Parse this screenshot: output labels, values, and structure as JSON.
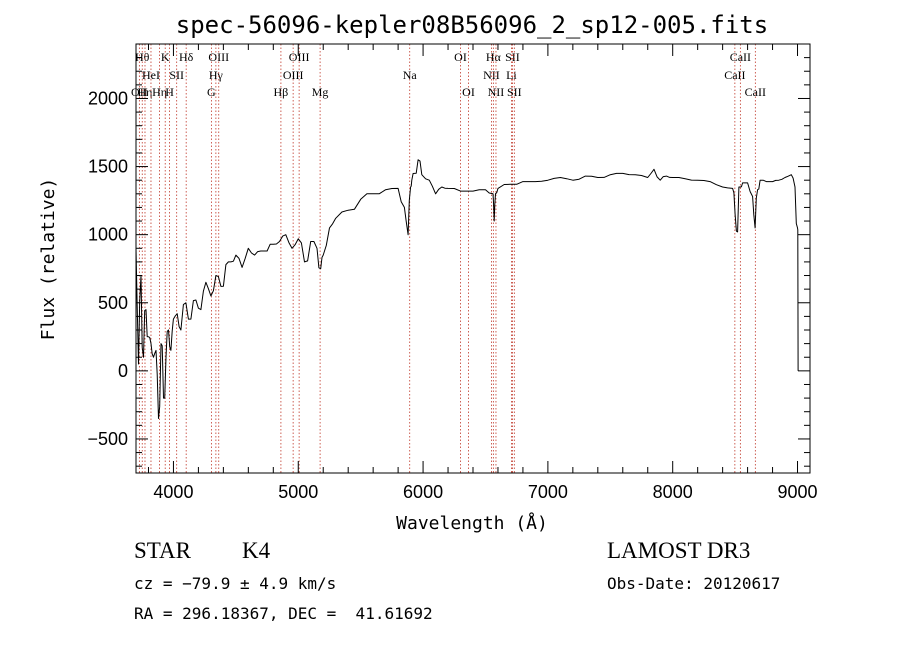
{
  "chart_data": {
    "type": "line",
    "title": "spec-56096-kepler08B56096_2_sp12-005.fits",
    "xlabel": "Wavelength (Å)",
    "ylabel": "Flux (relative)",
    "xlim": [
      3700,
      9100
    ],
    "ylim": [
      -750,
      2400
    ],
    "x_ticks": [
      4000,
      5000,
      6000,
      7000,
      8000,
      9000
    ],
    "x_tick_labels": [
      "4000",
      "5000",
      "6000",
      "7000",
      "8000",
      "9000"
    ],
    "y_ticks": [
      -500,
      0,
      500,
      1000,
      1500,
      2000
    ],
    "y_tick_labels": [
      "−500",
      "0",
      "500",
      "1000",
      "1500",
      "2000"
    ],
    "series": [
      {
        "name": "flux",
        "x": [
          3700,
          3720,
          3740,
          3760,
          3780,
          3800,
          3820,
          3840,
          3860,
          3880,
          3900,
          3920,
          3940,
          3960,
          3980,
          4000,
          4030,
          4060,
          4100,
          4140,
          4180,
          4220,
          4260,
          4300,
          4340,
          4380,
          4420,
          4460,
          4500,
          4550,
          4600,
          4650,
          4700,
          4750,
          4800,
          4850,
          4900,
          4950,
          5000,
          5050,
          5100,
          5150,
          5180,
          5200,
          5250,
          5300,
          5400,
          5500,
          5600,
          5700,
          5800,
          5850,
          5880,
          5900,
          5910,
          5930,
          5960,
          5990,
          6050,
          6100,
          6150,
          6200,
          6300,
          6400,
          6500,
          6560,
          6570,
          6580,
          6600,
          6700,
          6800,
          6900,
          7000,
          7100,
          7200,
          7300,
          7400,
          7500,
          7600,
          7700,
          7800,
          7850,
          7900,
          7950,
          8000,
          8100,
          8200,
          8300,
          8400,
          8480,
          8500,
          8520,
          8540,
          8560,
          8600,
          8640,
          8660,
          8680,
          8700,
          8750,
          8800,
          8850,
          8900,
          8950,
          8980,
          9000,
          9005
        ],
        "y": [
          900,
          50,
          700,
          100,
          450,
          250,
          200,
          100,
          150,
          -350,
          200,
          -200,
          100,
          300,
          150,
          380,
          420,
          300,
          500,
          380,
          520,
          450,
          650,
          550,
          700,
          620,
          780,
          800,
          850,
          760,
          900,
          850,
          880,
          880,
          930,
          950,
          1000,
          900,
          970,
          800,
          950,
          900,
          750,
          850,
          1050,
          1120,
          1180,
          1260,
          1300,
          1330,
          1340,
          1200,
          1000,
          1350,
          1400,
          1450,
          1550,
          1440,
          1400,
          1300,
          1350,
          1340,
          1320,
          1320,
          1330,
          1300,
          1100,
          1300,
          1340,
          1370,
          1390,
          1390,
          1400,
          1420,
          1400,
          1430,
          1420,
          1440,
          1450,
          1440,
          1420,
          1480,
          1400,
          1430,
          1420,
          1410,
          1400,
          1390,
          1350,
          1340,
          1150,
          1020,
          1350,
          1380,
          1380,
          1280,
          1050,
          1330,
          1400,
          1390,
          1390,
          1400,
          1420,
          1440,
          1350,
          1050,
          0
        ]
      }
    ],
    "lines": [
      {
        "w": 3727,
        "label": "OII",
        "row": 2
      },
      {
        "w": 3750,
        "label": "Hθ",
        "row": 0
      },
      {
        "w": 3772,
        "label": "Hη",
        "row": 2
      },
      {
        "w": 3820,
        "label": "HeI",
        "row": 1
      },
      {
        "w": 3889,
        "label": "Hη",
        "row": 2
      },
      {
        "w": 3934,
        "label": "K",
        "row": 0
      },
      {
        "w": 3969,
        "label": "H",
        "row": 2
      },
      {
        "w": 4026,
        "label": "SII",
        "row": 1
      },
      {
        "w": 4102,
        "label": "Hδ",
        "row": 0
      },
      {
        "w": 4304,
        "label": "G",
        "row": 2
      },
      {
        "w": 4340,
        "label": "Hγ",
        "row": 1
      },
      {
        "w": 4363,
        "label": "OIII",
        "row": 0
      },
      {
        "w": 4861,
        "label": "Hβ",
        "row": 2
      },
      {
        "w": 4959,
        "label": "OIII",
        "row": 1
      },
      {
        "w": 5007,
        "label": "OIII",
        "row": 0
      },
      {
        "w": 5175,
        "label": "Mg",
        "row": 2
      },
      {
        "w": 5893,
        "label": "Na",
        "row": 1
      },
      {
        "w": 6300,
        "label": "OI",
        "row": 0
      },
      {
        "w": 6364,
        "label": "OI",
        "row": 2
      },
      {
        "w": 6548,
        "label": "NII",
        "row": 1
      },
      {
        "w": 6563,
        "label": "Hα",
        "row": 0
      },
      {
        "w": 6584,
        "label": "NII",
        "row": 2
      },
      {
        "w": 6708,
        "label": "Li",
        "row": 1
      },
      {
        "w": 6716,
        "label": "SII",
        "row": 0
      },
      {
        "w": 6731,
        "label": "SII",
        "row": 2
      },
      {
        "w": 8498,
        "label": "CaII",
        "row": 1
      },
      {
        "w": 8542,
        "label": "CaII",
        "row": 0
      },
      {
        "w": 8662,
        "label": "CaII",
        "row": 2
      }
    ]
  },
  "info": {
    "class_label": "STAR",
    "subclass": "K4",
    "survey": "LAMOST DR3",
    "cz": "cz = −79.9 ± 4.9 km/s",
    "obs_date": "Obs-Date: 20120617",
    "radec": "RA = 296.18367, DEC =  41.61692"
  }
}
